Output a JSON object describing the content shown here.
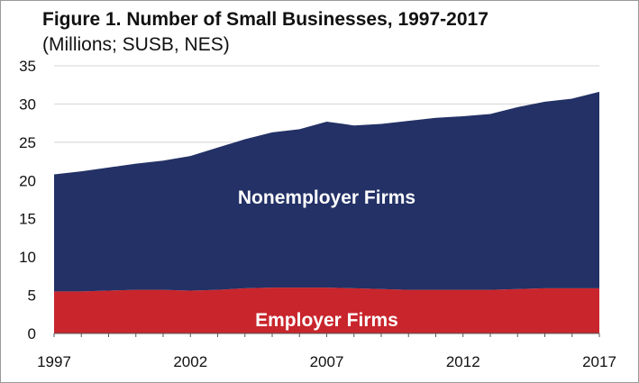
{
  "title": {
    "bold": "Figure 1. Number of Small Businesses, 1997-2017",
    "rest": " (Millions; SUSB, NES)"
  },
  "chart_data": {
    "type": "area",
    "stacked": true,
    "title": "Figure 1. Number of Small Businesses, 1997-2017 (Millions; SUSB, NES)",
    "x": [
      1997,
      1998,
      1999,
      2000,
      2001,
      2002,
      2003,
      2004,
      2005,
      2006,
      2007,
      2008,
      2009,
      2010,
      2011,
      2012,
      2013,
      2014,
      2015,
      2016,
      2017
    ],
    "xticks": [
      1997,
      2002,
      2007,
      2012,
      2017
    ],
    "ylim": [
      0,
      35
    ],
    "yticks": [
      0,
      5,
      10,
      15,
      20,
      25,
      30,
      35
    ],
    "grid": "horizontal",
    "series": [
      {
        "name": "Employer Firms",
        "color": "#c9252c",
        "values": [
          5.5,
          5.5,
          5.6,
          5.7,
          5.7,
          5.6,
          5.7,
          5.9,
          6.0,
          6.0,
          6.0,
          5.9,
          5.8,
          5.7,
          5.7,
          5.7,
          5.7,
          5.8,
          5.9,
          5.9,
          5.9
        ]
      },
      {
        "name": "Nonemployer Firms",
        "color": "#233166",
        "values": [
          15.3,
          15.7,
          16.1,
          16.5,
          16.9,
          17.6,
          18.6,
          19.5,
          20.3,
          20.7,
          21.7,
          21.3,
          21.6,
          22.1,
          22.5,
          22.7,
          23.0,
          23.8,
          24.4,
          24.8,
          25.7
        ]
      }
    ]
  }
}
